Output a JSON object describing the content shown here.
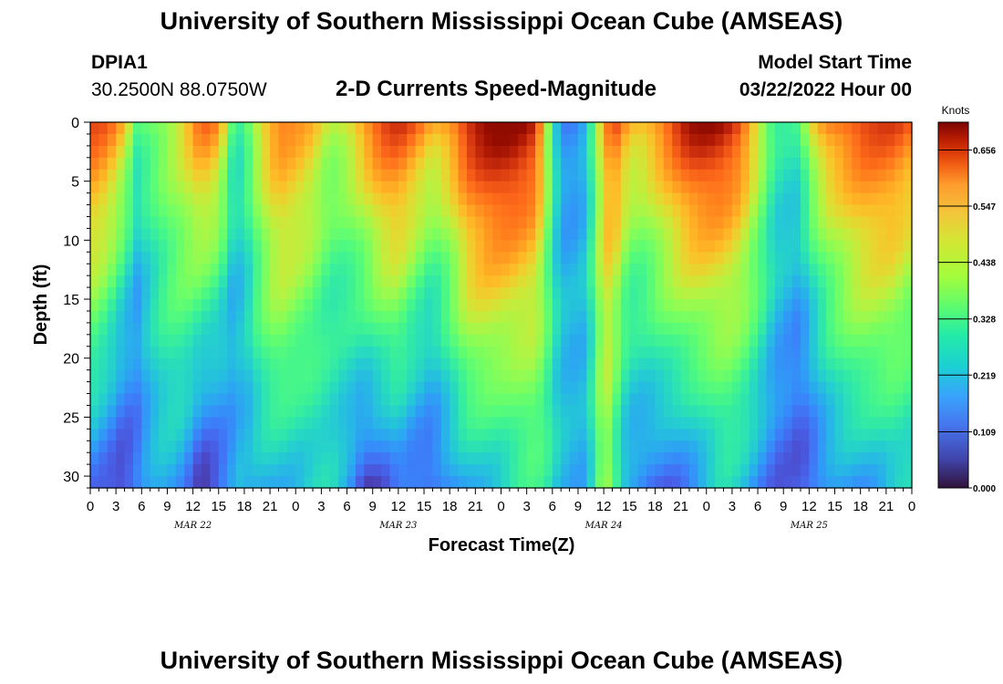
{
  "page": {
    "title": "University of Southern Mississippi Ocean Cube (AMSEAS)",
    "title_repeat": "University of Southern Mississippi Ocean Cube (AMSEAS)",
    "station_id": "DPIA1",
    "station_coords": "30.2500N  88.0750W",
    "chart_title": "2-D Currents Speed-Magnitude",
    "model_start_label": "Model Start Time",
    "model_start_value": "03/22/2022 Hour 00"
  },
  "chart_data": {
    "type": "heatmap",
    "title": "2-D Currents Speed-Magnitude",
    "xlabel": "Forecast Time(Z)",
    "ylabel": "Depth (ft)",
    "x_range_hours": [
      0,
      96
    ],
    "x_tick_labels": [
      "0",
      "3",
      "6",
      "9",
      "12",
      "15",
      "18",
      "21",
      "0",
      "3",
      "6",
      "9",
      "12",
      "15",
      "18",
      "21",
      "0",
      "3",
      "6",
      "9",
      "12",
      "15",
      "18",
      "21",
      "0",
      "3",
      "6",
      "9",
      "12",
      "15",
      "18",
      "21",
      "0"
    ],
    "date_labels": [
      {
        "label": "MAR 22",
        "hour": 12
      },
      {
        "label": "MAR 23",
        "hour": 36
      },
      {
        "label": "MAR 24",
        "hour": 60
      },
      {
        "label": "MAR 25",
        "hour": 84
      }
    ],
    "y_range_ft": [
      0,
      31
    ],
    "y_ticks": [
      0,
      5,
      10,
      15,
      20,
      25,
      30
    ],
    "colorbar": {
      "unit": "Knots",
      "min": 0.0,
      "max": 0.71,
      "ticks": [
        "0.000",
        "0.109",
        "0.219",
        "0.328",
        "0.438",
        "0.547",
        "0.656"
      ],
      "tick_values": [
        0.0,
        0.109,
        0.219,
        0.328,
        0.438,
        0.547,
        0.656
      ]
    },
    "speed_profile_hours": [
      0,
      2,
      4,
      5.5,
      7,
      9,
      11,
      13,
      15,
      16.5,
      17.5,
      18.5,
      20,
      22,
      24,
      26,
      28,
      30,
      32,
      34,
      36,
      38,
      40,
      42,
      44,
      46,
      48,
      50,
      52,
      53,
      54,
      55,
      56,
      57,
      58,
      59,
      60,
      61,
      62,
      63,
      64,
      65,
      66,
      68,
      70,
      72,
      74,
      76,
      78,
      80,
      82,
      83,
      84,
      86,
      88,
      90,
      92,
      94,
      96
    ],
    "surface_speed_knots": [
      0.6,
      0.55,
      0.45,
      0.3,
      0.35,
      0.4,
      0.45,
      0.55,
      0.5,
      0.3,
      0.28,
      0.35,
      0.48,
      0.55,
      0.5,
      0.45,
      0.38,
      0.45,
      0.55,
      0.6,
      0.6,
      0.55,
      0.5,
      0.56,
      0.65,
      0.68,
      0.7,
      0.7,
      0.66,
      0.5,
      0.3,
      0.15,
      0.12,
      0.12,
      0.15,
      0.3,
      0.45,
      0.58,
      0.55,
      0.5,
      0.5,
      0.52,
      0.55,
      0.6,
      0.65,
      0.68,
      0.68,
      0.63,
      0.45,
      0.25,
      0.22,
      0.25,
      0.4,
      0.55,
      0.6,
      0.62,
      0.6,
      0.58,
      0.55
    ],
    "bottom_speed_knots": [
      0.12,
      0.1,
      0.05,
      0.08,
      0.12,
      0.15,
      0.14,
      0.06,
      0.08,
      0.12,
      0.14,
      0.13,
      0.15,
      0.18,
      0.2,
      0.22,
      0.2,
      0.12,
      0.04,
      0.08,
      0.14,
      0.1,
      0.06,
      0.1,
      0.16,
      0.2,
      0.22,
      0.24,
      0.24,
      0.22,
      0.2,
      0.16,
      0.18,
      0.16,
      0.2,
      0.28,
      0.4,
      0.3,
      0.18,
      0.12,
      0.1,
      0.08,
      0.08,
      0.1,
      0.14,
      0.18,
      0.2,
      0.16,
      0.12,
      0.1,
      0.1,
      0.08,
      0.08,
      0.1,
      0.12,
      0.14,
      0.18,
      0.22,
      0.2
    ]
  }
}
